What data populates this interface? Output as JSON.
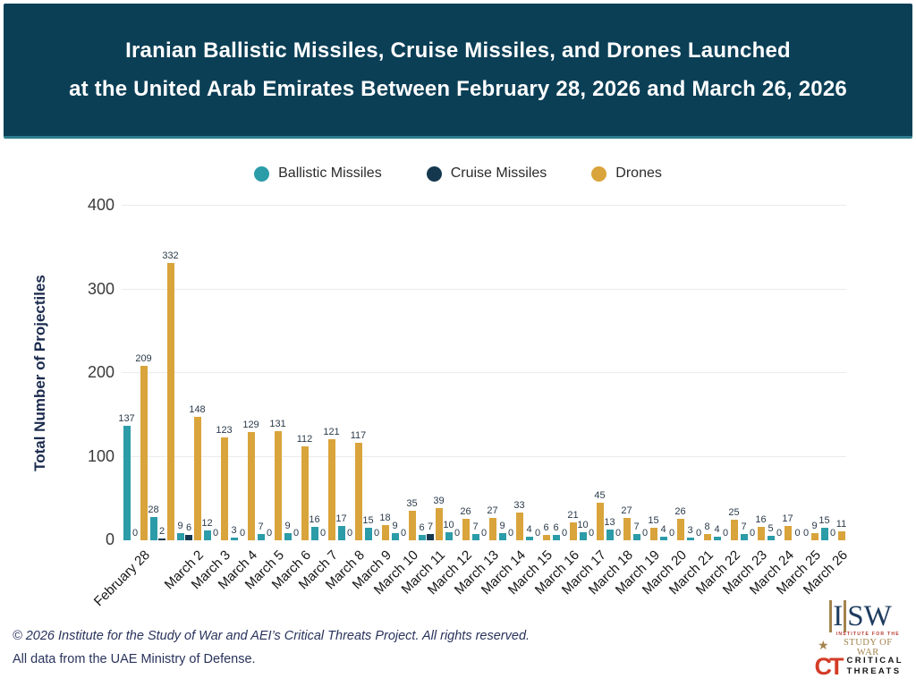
{
  "header": {
    "title_line1": "Iranian Ballistic Missiles, Cruise Missiles, and Drones Launched",
    "title_line2": "at the United Arab Emirates Between February 28, 2026 and March 26, 2026"
  },
  "legend": {
    "items": [
      {
        "label": "Ballistic Missiles",
        "color": "#2B9CA8"
      },
      {
        "label": "Cruise Missiles",
        "color": "#16384F"
      },
      {
        "label": "Drones",
        "color": "#D9A43B"
      }
    ]
  },
  "chart_data": {
    "type": "bar",
    "title": "Iranian Ballistic Missiles, Cruise Missiles, and Drones Launched at the United Arab Emirates Between February 28, 2026 and March 26, 2026",
    "xlabel": "",
    "ylabel": "Total Number of Projectiles",
    "ylim": [
      0,
      400
    ],
    "yticks": [
      0,
      100,
      200,
      300,
      400
    ],
    "grid": true,
    "legend_position": "top",
    "note": "second group (March 1) has no x-axis label in the original",
    "categories": [
      "February 28",
      "",
      "March 2",
      "March 3",
      "March 4",
      "March 5",
      "March 6",
      "March 7",
      "March 8",
      "March 9",
      "March 10",
      "March 11",
      "March 12",
      "March 13",
      "March 14",
      "March 15",
      "March 16",
      "March 17",
      "March 18",
      "March 19",
      "March 20",
      "March 21",
      "March 22",
      "March 23",
      "March 24",
      "March 25",
      "March 26"
    ],
    "series": [
      {
        "name": "Ballistic Missiles",
        "color": "#2B9CA8",
        "values": [
          137,
          28,
          9,
          12,
          3,
          7,
          9,
          16,
          17,
          15,
          9,
          6,
          10,
          7,
          9,
          4,
          6,
          10,
          13,
          7,
          4,
          3,
          4,
          7,
          5,
          0,
          15
        ]
      },
      {
        "name": "Cruise Missiles",
        "color": "#16384F",
        "values": [
          0,
          2,
          6,
          0,
          0,
          0,
          0,
          0,
          0,
          0,
          0,
          7,
          0,
          0,
          0,
          0,
          0,
          0,
          0,
          0,
          0,
          0,
          0,
          0,
          0,
          0,
          0
        ]
      },
      {
        "name": "Drones",
        "color": "#D9A43B",
        "values": [
          209,
          332,
          148,
          123,
          129,
          131,
          112,
          121,
          117,
          18,
          35,
          39,
          26,
          27,
          33,
          6,
          21,
          45,
          27,
          15,
          26,
          8,
          25,
          16,
          17,
          9,
          11
        ]
      }
    ]
  },
  "footer": {
    "line1": "© 2026 Institute for the Study of War and AEI’s Critical Threats Project. All rights reserved.",
    "line2": "All data from the UAE Ministry of Defense."
  },
  "logos": {
    "isw": {
      "i": "I",
      "sw": "SW",
      "sub1": "INSTITUTE FOR THE",
      "sub2": "STUDY OF WAR",
      "star": "★"
    },
    "ct": {
      "monogram": "CT",
      "line1": "CRITICAL",
      "line2": "THREATS"
    }
  }
}
